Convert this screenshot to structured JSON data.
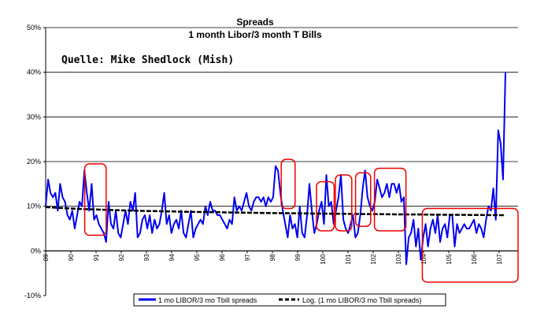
{
  "chart_data": {
    "type": "line",
    "title": "Spreads",
    "subtitle": "1 month Libor/3 month T Bills",
    "annotation": "Quelle: Mike Shedlock (Mish)",
    "xlabel": "",
    "ylabel": "",
    "ylim": [
      -10,
      50
    ],
    "y_ticks": [
      "-10%",
      "0%",
      "10%",
      "20%",
      "30%",
      "40%",
      "50%"
    ],
    "x_categories": [
      "89",
      "90",
      "91",
      "92",
      "93",
      "94",
      "95",
      "96",
      "97",
      "98",
      "99",
      "100",
      "101",
      "102",
      "103",
      "104",
      "105",
      "106",
      "107"
    ],
    "grid": "horizontal",
    "series": [
      {
        "name": "1 mo LIBOR/3 mo Tbill spreads",
        "color": "#0000ee",
        "x_start": 89,
        "x_end": 107.25,
        "values": [
          10,
          16,
          13,
          12,
          13,
          9,
          15,
          12,
          11,
          8,
          7,
          9,
          5,
          8,
          11,
          10,
          18,
          13,
          9,
          15,
          7,
          8,
          6,
          5,
          4,
          2,
          11,
          6,
          5,
          9,
          4,
          3,
          6,
          9,
          6,
          11,
          9,
          13,
          3,
          4,
          7,
          8,
          5,
          8,
          4,
          7,
          5,
          6,
          9,
          13,
          6,
          8,
          4,
          6,
          7,
          5,
          9,
          4,
          3,
          6,
          9,
          3,
          5,
          6,
          7,
          6,
          10,
          8,
          11,
          9,
          9,
          8,
          8,
          7,
          6,
          5,
          7,
          6,
          12,
          9,
          10,
          9,
          11,
          13,
          10,
          9,
          11,
          12,
          12,
          11,
          12,
          10,
          12,
          11,
          12,
          19,
          18,
          13,
          9,
          6,
          3,
          8,
          5,
          6,
          3,
          10,
          4,
          3,
          8,
          15,
          9,
          4,
          6,
          9,
          11,
          6,
          17,
          10,
          11,
          6,
          9,
          12,
          17,
          7,
          5,
          4,
          6,
          8,
          3,
          4,
          8,
          14,
          18,
          12,
          10,
          9,
          11,
          16,
          14,
          12,
          13,
          15,
          12,
          15,
          15,
          13,
          15,
          11,
          12,
          -3,
          3,
          4,
          7,
          1,
          5,
          -2,
          3,
          6,
          1,
          5,
          7,
          4,
          8,
          2,
          5,
          6,
          3,
          8,
          8,
          1,
          6,
          4,
          5,
          6,
          5,
          5,
          6,
          7,
          4,
          6,
          5,
          3,
          7,
          10,
          9,
          14,
          7,
          27,
          24,
          16,
          40
        ]
      },
      {
        "name": "Log. (1 mo LIBOR/3 mo Tbill spreads)",
        "color": "#000000",
        "style": "dashed",
        "start_value": 9.8,
        "end_value": 8.0
      }
    ],
    "highlight_boxes": [
      {
        "x_range": [
          90.55,
          91.4
        ],
        "y_range": [
          3.5,
          19.5
        ]
      },
      {
        "x_range": [
          98.35,
          98.9
        ],
        "y_range": [
          9.5,
          20.5
        ]
      },
      {
        "x_range": [
          99.75,
          100.45
        ],
        "y_range": [
          4.5,
          15.5
        ]
      },
      {
        "x_range": [
          100.5,
          101.15
        ],
        "y_range": [
          4.5,
          17
        ]
      },
      {
        "x_range": [
          101.3,
          101.9
        ],
        "y_range": [
          5.5,
          17.5
        ]
      },
      {
        "x_range": [
          102.05,
          103.3
        ],
        "y_range": [
          4.5,
          18.5
        ]
      },
      {
        "x_range": [
          103.95,
          107.75
        ],
        "y_range": [
          -7,
          9.5
        ]
      }
    ],
    "highlight_color": "#ee0000"
  }
}
